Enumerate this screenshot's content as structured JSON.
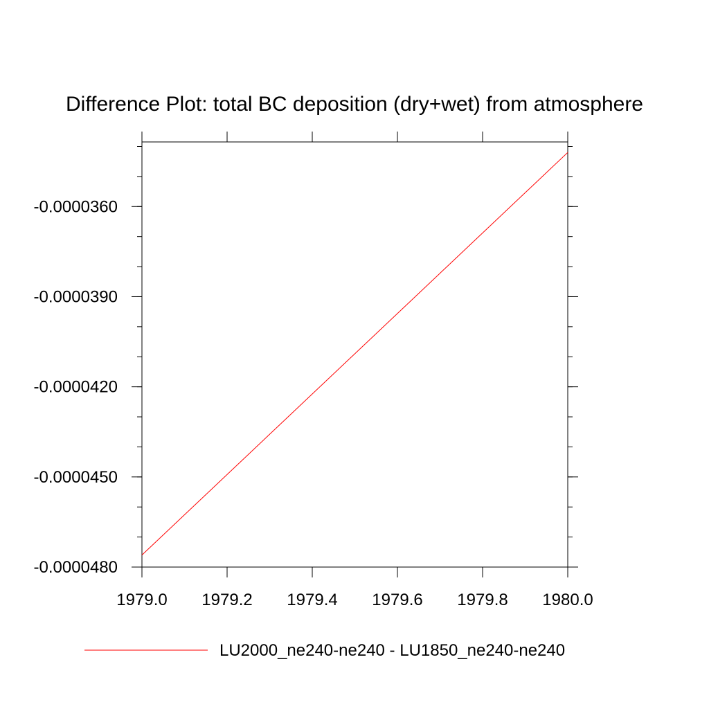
{
  "chart_data": {
    "type": "line",
    "title": "Difference Plot: total BC deposition (dry+wet) from atmosphere",
    "xlabel": "",
    "ylabel": "",
    "xlim": [
      1979.0,
      1980.0
    ],
    "ylim": [
      -4.8e-05,
      -3.385e-05
    ],
    "x_ticks": [
      1979.0,
      1979.2,
      1979.4,
      1979.6,
      1979.8,
      1980.0
    ],
    "x_tick_labels": [
      "1979.0",
      "1979.2",
      "1979.4",
      "1979.6",
      "1979.8",
      "1980.0"
    ],
    "y_ticks": [
      -3.6e-05,
      -3.9e-05,
      -4.2e-05,
      -4.5e-05,
      -4.8e-05
    ],
    "y_tick_labels": [
      "-0.0000360",
      "-0.0000390",
      "-0.0000420",
      "-0.0000450",
      "-0.0000480"
    ],
    "grid": false,
    "legend_position": "bottom",
    "series": [
      {
        "name": "LU2000_ne240-ne240 - LU1850_ne240-ne240",
        "color": "#ff0000",
        "x": [
          1979.0,
          1980.0
        ],
        "y": [
          -4.76e-05,
          -3.42e-05
        ]
      }
    ]
  }
}
